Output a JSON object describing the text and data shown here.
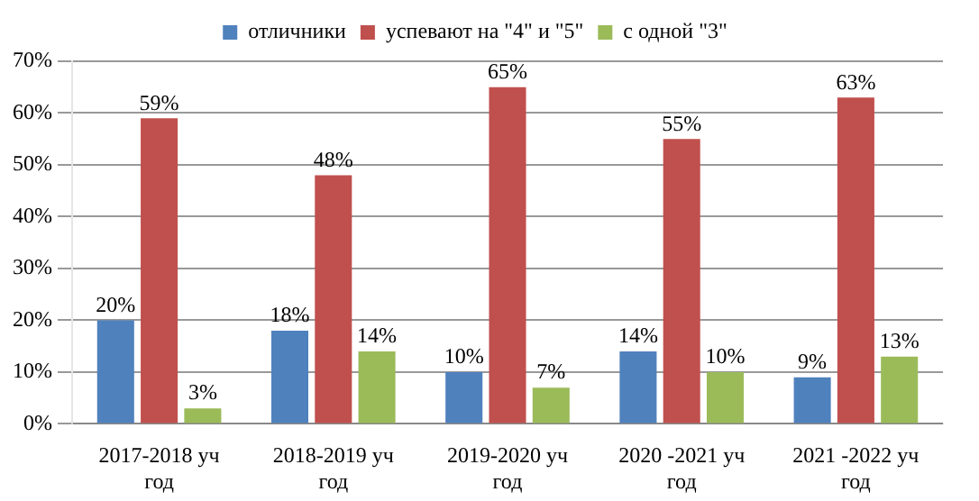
{
  "chart_data": {
    "type": "bar",
    "categories": [
      "2017-2018 уч год",
      "2018-2019 уч год",
      "2019-2020 уч год",
      "2020 -2021 уч год",
      "2021 -2022 уч год"
    ],
    "series": [
      {
        "name": "отличники",
        "color": "#4f81bd",
        "values": [
          20,
          18,
          10,
          14,
          9
        ],
        "value_labels": [
          "20%",
          "18%",
          "10%",
          "14%",
          "9%"
        ]
      },
      {
        "name": "успевают на \"4\" и \"5\"",
        "color": "#c0504d",
        "values": [
          59,
          48,
          65,
          55,
          63
        ],
        "value_labels": [
          "59%",
          "48%",
          "65%",
          "55%",
          "63%"
        ]
      },
      {
        "name": "с одной \"3\"",
        "color": "#9bbb59",
        "values": [
          3,
          14,
          7,
          10,
          13
        ],
        "value_labels": [
          "3%",
          "14%",
          "7%",
          "10%",
          "13%"
        ]
      }
    ],
    "ylim": [
      0,
      70
    ],
    "yticks": [
      {
        "value": 0,
        "label": "0%"
      },
      {
        "value": 10,
        "label": "10%"
      },
      {
        "value": 20,
        "label": "20%"
      },
      {
        "value": 30,
        "label": "30%"
      },
      {
        "value": 40,
        "label": "40%"
      },
      {
        "value": 50,
        "label": "50%"
      },
      {
        "value": 60,
        "label": "60%"
      },
      {
        "value": 70,
        "label": "70%"
      }
    ],
    "grid": "y",
    "legend": "top"
  }
}
